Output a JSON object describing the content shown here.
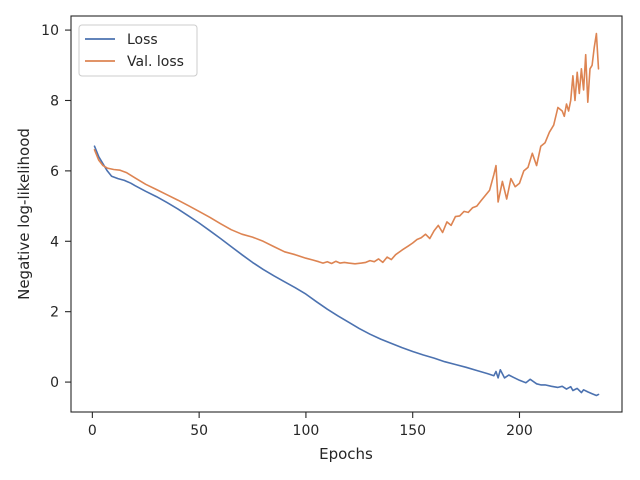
{
  "chart_data": {
    "type": "line",
    "title": "",
    "xlabel": "Epochs",
    "ylabel": "Negative log-likelihood",
    "xlim": [
      -10,
      248
    ],
    "ylim": [
      -0.85,
      10.4
    ],
    "xticks": [
      0,
      50,
      100,
      150,
      200
    ],
    "yticks": [
      0,
      2,
      4,
      6,
      8,
      10
    ],
    "grid": false,
    "legend": "top-left",
    "series": [
      {
        "name": "Loss",
        "color": "#4c72b0",
        "x": [
          1,
          3,
          5,
          7,
          9,
          12,
          15,
          18,
          20,
          25,
          30,
          35,
          40,
          45,
          50,
          55,
          60,
          65,
          70,
          75,
          80,
          85,
          90,
          95,
          100,
          105,
          110,
          115,
          120,
          125,
          130,
          135,
          140,
          145,
          150,
          155,
          160,
          165,
          170,
          175,
          180,
          185,
          188,
          189,
          190,
          191,
          193,
          195,
          197,
          200,
          203,
          205,
          208,
          210,
          212,
          215,
          218,
          220,
          222,
          224,
          225,
          227,
          229,
          230,
          232,
          234,
          236,
          237
        ],
        "values": [
          6.7,
          6.4,
          6.2,
          6.0,
          5.85,
          5.78,
          5.73,
          5.65,
          5.58,
          5.42,
          5.27,
          5.1,
          4.92,
          4.72,
          4.52,
          4.3,
          4.08,
          3.85,
          3.62,
          3.4,
          3.2,
          3.02,
          2.85,
          2.68,
          2.5,
          2.28,
          2.07,
          1.88,
          1.7,
          1.52,
          1.36,
          1.22,
          1.1,
          0.98,
          0.87,
          0.77,
          0.68,
          0.58,
          0.5,
          0.42,
          0.33,
          0.24,
          0.18,
          0.3,
          0.12,
          0.35,
          0.12,
          0.2,
          0.14,
          0.05,
          -0.02,
          0.08,
          -0.05,
          -0.08,
          -0.08,
          -0.12,
          -0.15,
          -0.12,
          -0.2,
          -0.13,
          -0.24,
          -0.18,
          -0.3,
          -0.22,
          -0.28,
          -0.33,
          -0.38,
          -0.35
        ]
      },
      {
        "name": "Val. loss",
        "color": "#dd8452",
        "x": [
          1,
          3,
          5,
          7,
          10,
          13,
          16,
          20,
          25,
          30,
          35,
          40,
          45,
          50,
          55,
          60,
          65,
          70,
          75,
          80,
          85,
          90,
          95,
          100,
          103,
          106,
          108,
          110,
          112,
          114,
          116,
          118,
          120,
          123,
          126,
          128,
          130,
          132,
          134,
          136,
          138,
          140,
          142,
          145,
          148,
          150,
          152,
          154,
          156,
          158,
          160,
          162,
          164,
          166,
          168,
          170,
          172,
          174,
          176,
          178,
          180,
          182,
          184,
          186,
          188,
          189,
          190,
          192,
          194,
          196,
          198,
          200,
          202,
          204,
          206,
          208,
          210,
          212,
          214,
          216,
          218,
          220,
          221,
          222,
          223,
          224,
          225,
          226,
          227,
          228,
          229,
          230,
          231,
          232,
          233,
          234,
          235,
          236,
          237
        ],
        "values": [
          6.6,
          6.3,
          6.15,
          6.08,
          6.04,
          6.02,
          5.95,
          5.8,
          5.62,
          5.47,
          5.32,
          5.17,
          5.01,
          4.85,
          4.68,
          4.5,
          4.33,
          4.2,
          4.12,
          4.0,
          3.85,
          3.7,
          3.62,
          3.52,
          3.47,
          3.42,
          3.38,
          3.42,
          3.37,
          3.43,
          3.38,
          3.4,
          3.38,
          3.36,
          3.38,
          3.4,
          3.45,
          3.42,
          3.5,
          3.4,
          3.55,
          3.48,
          3.62,
          3.75,
          3.87,
          3.95,
          4.05,
          4.1,
          4.2,
          4.08,
          4.3,
          4.45,
          4.25,
          4.55,
          4.45,
          4.7,
          4.72,
          4.85,
          4.82,
          4.95,
          5.0,
          5.15,
          5.3,
          5.45,
          5.9,
          6.15,
          5.12,
          5.7,
          5.2,
          5.78,
          5.55,
          5.65,
          6.0,
          6.1,
          6.5,
          6.15,
          6.7,
          6.8,
          7.1,
          7.3,
          7.8,
          7.7,
          7.55,
          7.9,
          7.7,
          8.0,
          8.7,
          8.0,
          8.8,
          8.2,
          8.9,
          8.3,
          9.3,
          7.95,
          8.9,
          9.0,
          9.5,
          9.9,
          8.9
        ]
      }
    ]
  }
}
